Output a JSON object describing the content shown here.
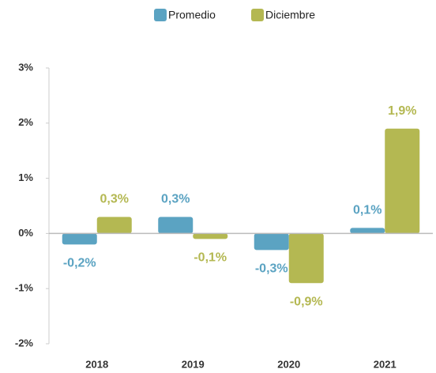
{
  "chart_data": {
    "type": "bar",
    "categories": [
      "2018",
      "2019",
      "2020",
      "2021"
    ],
    "series": [
      {
        "name": "Promedio",
        "color": "#5ba3c2",
        "values": [
          -0.2,
          0.3,
          -0.3,
          0.1
        ],
        "value_labels": [
          "-0,2%",
          "0,3%",
          "-0,3%",
          "0,1%"
        ]
      },
      {
        "name": "Diciembre",
        "color": "#b4b852",
        "values": [
          0.3,
          -0.1,
          -0.9,
          1.9
        ],
        "value_labels": [
          "0,3%",
          "-0,1%",
          "-0,9%",
          "1,9%"
        ]
      }
    ],
    "ylim": [
      -2,
      3
    ],
    "yticks": [
      {
        "value": -2,
        "label": "-2%"
      },
      {
        "value": -1,
        "label": "-1%"
      },
      {
        "value": 0,
        "label": "0%"
      },
      {
        "value": 1,
        "label": "1%"
      },
      {
        "value": 2,
        "label": "2%"
      },
      {
        "value": 3,
        "label": "3%"
      }
    ],
    "legend": "top",
    "grid": false
  }
}
